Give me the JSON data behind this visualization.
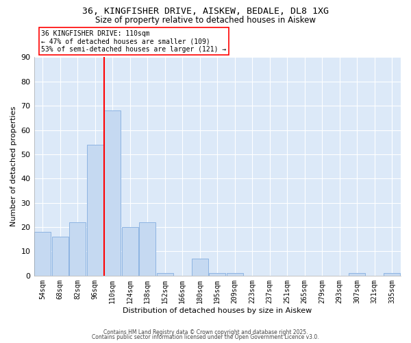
{
  "title1": "36, KINGFISHER DRIVE, AISKEW, BEDALE, DL8 1XG",
  "title2": "Size of property relative to detached houses in Aiskew",
  "xlabel": "Distribution of detached houses by size in Aiskew",
  "ylabel": "Number of detached properties",
  "bar_labels": [
    "54sqm",
    "68sqm",
    "82sqm",
    "96sqm",
    "110sqm",
    "124sqm",
    "138sqm",
    "152sqm",
    "166sqm",
    "180sqm",
    "195sqm",
    "209sqm",
    "223sqm",
    "237sqm",
    "251sqm",
    "265sqm",
    "279sqm",
    "293sqm",
    "307sqm",
    "321sqm",
    "335sqm"
  ],
  "bar_values": [
    18,
    16,
    22,
    54,
    68,
    20,
    22,
    1,
    0,
    7,
    1,
    1,
    0,
    0,
    0,
    0,
    0,
    0,
    1,
    0,
    1
  ],
  "bar_color": "#c5d9f1",
  "bar_edge_color": "#8db4e2",
  "vline_x_index": 3.5,
  "vline_color": "red",
  "annotation_text": "36 KINGFISHER DRIVE: 110sqm\n← 47% of detached houses are smaller (109)\n53% of semi-detached houses are larger (121) →",
  "annotation_box_color": "white",
  "annotation_box_edge": "red",
  "footer1": "Contains HM Land Registry data © Crown copyright and database right 2025.",
  "footer2": "Contains public sector information licensed under the Open Government Licence v3.0.",
  "ylim": [
    0,
    90
  ],
  "yticks": [
    0,
    10,
    20,
    30,
    40,
    50,
    60,
    70,
    80,
    90
  ],
  "plot_bg_color": "#dce9f8",
  "fig_bg_color": "#ffffff",
  "grid_color": "#ffffff"
}
